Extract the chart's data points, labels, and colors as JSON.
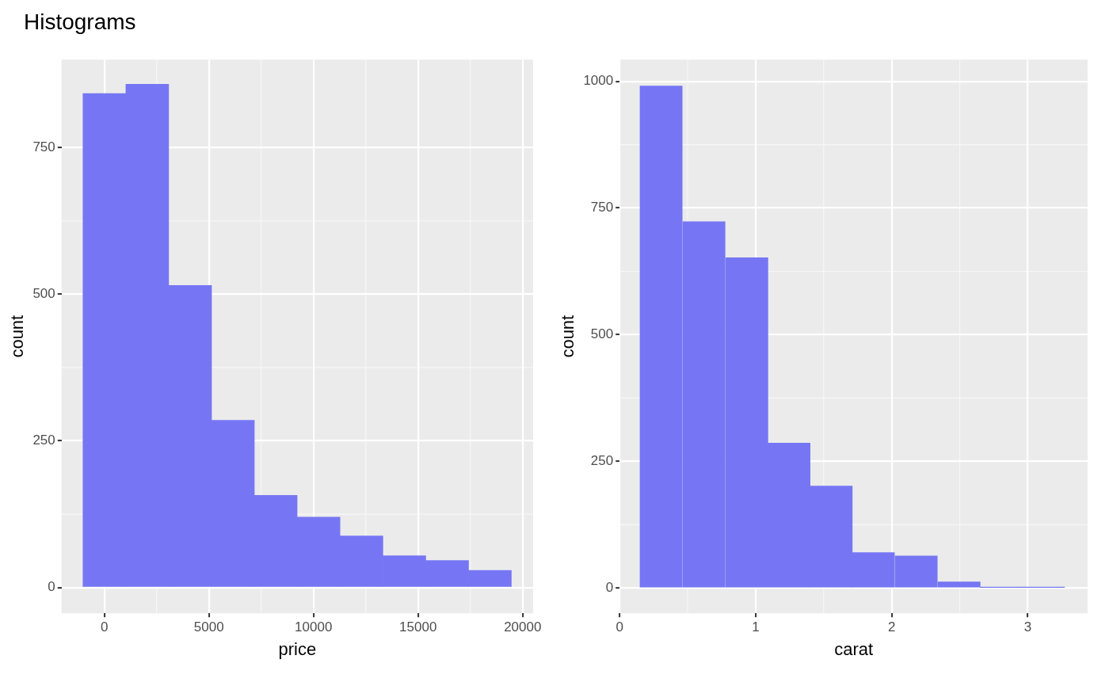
{
  "chart_data": [
    {
      "type": "histogram",
      "title": "Histograms",
      "xlabel": "price",
      "ylabel": "count",
      "bins": [
        -1020,
        1030,
        3080,
        5130,
        7170,
        9220,
        11270,
        13320,
        15370,
        17410,
        19460
      ],
      "values": [
        842,
        858,
        515,
        285,
        157,
        120,
        88,
        54,
        46,
        29
      ],
      "color": "#7676f4",
      "xlim": [
        -2040,
        20500
      ],
      "ylim": [
        -44,
        900
      ],
      "xticks": [
        0,
        5000,
        10000,
        15000,
        20000
      ],
      "yticks": [
        0,
        250,
        500,
        750
      ],
      "grid": true
    },
    {
      "type": "histogram",
      "xlabel": "carat",
      "ylabel": "count",
      "bins": [
        0.15,
        0.46,
        0.78,
        1.09,
        1.4,
        1.71,
        2.02,
        2.34,
        2.65,
        2.96,
        3.27
      ],
      "values": [
        991,
        723,
        652,
        286,
        201,
        70,
        63,
        12,
        1,
        1
      ],
      "color": "#7676f4",
      "xlim": [
        0,
        3.44
      ],
      "ylim": [
        -50,
        1043
      ],
      "xticks": [
        0,
        1,
        2,
        3
      ],
      "yticks": [
        0,
        250,
        500,
        750,
        1000
      ],
      "grid": true
    }
  ]
}
